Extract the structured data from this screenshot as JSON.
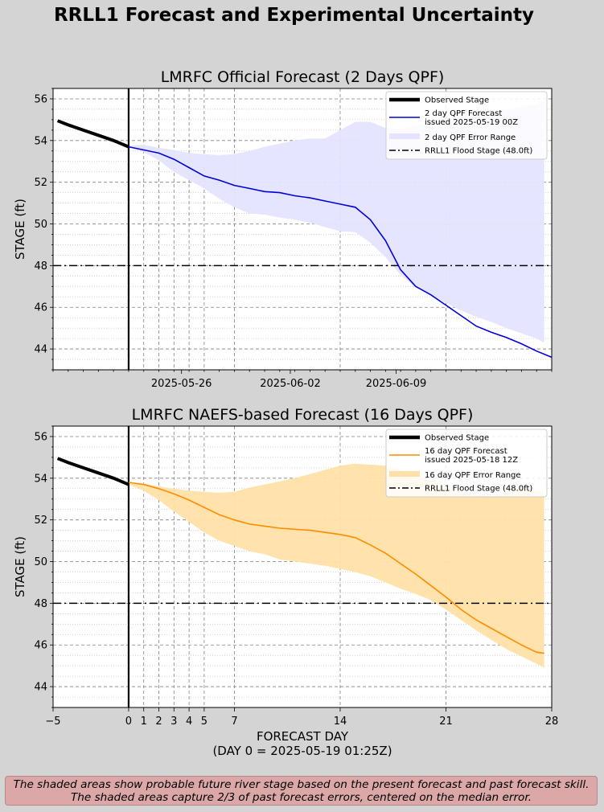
{
  "figure": {
    "title": "RRLL1 Forecast and Experimental Uncertainty",
    "footnote": [
      "The shaded areas show probable future river stage based on the present forecast and past forecast skill.",
      "The shaded areas capture 2/3 of past forecast errors, centered on the median error."
    ]
  },
  "colors": {
    "background": "#d4d4d4",
    "observed": "#000000",
    "forecast_2day": "#0000dd",
    "band_2day": "#e4e4ff",
    "forecast_16day": "#ff8c00",
    "band_16day": "#ffe0a8",
    "flood": "#000000",
    "footnote_bg": "#dca7a7"
  },
  "chart_data": [
    {
      "type": "line",
      "title": "LMRFC Official Forecast (2 Days QPF)",
      "ylabel": "STAGE (ft)",
      "xlim": [
        -5,
        28
      ],
      "ylim": [
        43,
        56.5
      ],
      "yticks": [
        44,
        46,
        48,
        50,
        52,
        54,
        56
      ],
      "date_ticks": [
        {
          "day": 3.5,
          "label": "2025-05-26"
        },
        {
          "day": 10.7,
          "label": "2025-06-02"
        },
        {
          "day": 17.7,
          "label": "2025-06-09"
        }
      ],
      "flood_stage": 48.0,
      "legend_position": "upper right",
      "legend": [
        "Observed Stage",
        "2 day QPF Forecast\nissued 2025-05-19 00Z",
        "2 day QPF Error Range",
        "RRLL1 Flood Stage (48.0ft)"
      ],
      "series": [
        {
          "name": "Observed Stage",
          "x": [
            -4.7,
            -4,
            -3,
            -2,
            -1,
            -0.5,
            0
          ],
          "y": [
            54.95,
            54.75,
            54.5,
            54.25,
            54.0,
            53.85,
            53.7
          ]
        },
        {
          "name": "2 day QPF Forecast\nissued 2025-05-19 00Z",
          "x": [
            0,
            1,
            2,
            3,
            4,
            5,
            6,
            7,
            8,
            9,
            10,
            11,
            12,
            13,
            14,
            15,
            16,
            17,
            18,
            19,
            20,
            21,
            22,
            23,
            24,
            25,
            26,
            27,
            28
          ],
          "y": [
            53.7,
            53.55,
            53.4,
            53.1,
            52.7,
            52.3,
            52.1,
            51.85,
            51.7,
            51.55,
            51.5,
            51.35,
            51.25,
            51.1,
            50.95,
            50.8,
            50.2,
            49.2,
            47.8,
            47.0,
            46.6,
            46.1,
            45.6,
            45.1,
            44.8,
            44.55,
            44.25,
            43.9,
            43.6
          ]
        },
        {
          "name": "2 day QPF Error Range",
          "x": [
            0,
            1,
            2,
            3,
            4,
            5,
            6,
            7,
            8,
            9,
            10,
            11,
            12,
            13,
            14,
            15,
            16,
            17,
            18,
            19,
            20,
            21,
            22,
            23,
            24,
            25,
            26,
            27,
            27.5
          ],
          "upper": [
            53.75,
            53.8,
            53.65,
            53.55,
            53.4,
            53.35,
            53.3,
            53.35,
            53.5,
            53.7,
            53.85,
            54.0,
            54.1,
            54.1,
            54.5,
            54.9,
            54.9,
            54.6,
            54.55,
            54.7,
            54.85,
            55.0,
            55.1,
            55.25,
            55.4,
            55.5,
            55.6,
            55.75,
            55.9
          ],
          "lower": [
            53.7,
            53.45,
            53.05,
            52.5,
            52.1,
            51.7,
            51.2,
            50.8,
            50.5,
            50.45,
            50.3,
            50.2,
            50.05,
            49.85,
            49.65,
            49.6,
            49.1,
            48.4,
            47.55,
            46.95,
            46.6,
            46.2,
            45.85,
            45.55,
            45.3,
            45.0,
            44.75,
            44.5,
            44.3
          ]
        }
      ]
    },
    {
      "type": "line",
      "title": "LMRFC NAEFS-based Forecast (16 Days QPF)",
      "ylabel": "STAGE (ft)",
      "xlabel": "FORECAST DAY",
      "xlabel2": "(DAY 0 = 2025-05-19 01:25Z)",
      "xlim": [
        -5,
        28
      ],
      "ylim": [
        43,
        56.5
      ],
      "yticks": [
        44,
        46,
        48,
        50,
        52,
        54,
        56
      ],
      "xticks": [
        -5,
        0,
        1,
        2,
        3,
        4,
        5,
        7,
        14,
        21,
        28
      ],
      "flood_stage": 48.0,
      "legend_position": "upper right",
      "legend": [
        "Observed Stage",
        "16 day QPF Forecast\nissued 2025-05-18 12Z",
        "16 day QPF Error Range",
        "RRLL1 Flood Stage (48.0ft)"
      ],
      "series": [
        {
          "name": "Observed Stage",
          "x": [
            -4.7,
            -4,
            -3,
            -2,
            -1,
            -0.5,
            0
          ],
          "y": [
            54.95,
            54.75,
            54.5,
            54.25,
            54.0,
            53.85,
            53.7
          ]
        },
        {
          "name": "16 day QPF Forecast\nissued 2025-05-18 12Z",
          "x": [
            0,
            1,
            2,
            3,
            4,
            5,
            6,
            7,
            8,
            9,
            10,
            11,
            12,
            13,
            14,
            15,
            16,
            17,
            18,
            19,
            20,
            21,
            22,
            23,
            24,
            25,
            26,
            27,
            27.5
          ],
          "y": [
            53.8,
            53.7,
            53.5,
            53.25,
            52.95,
            52.6,
            52.25,
            52.0,
            51.8,
            51.7,
            51.6,
            51.55,
            51.5,
            51.4,
            51.3,
            51.15,
            50.8,
            50.4,
            49.9,
            49.4,
            48.85,
            48.3,
            47.7,
            47.2,
            46.8,
            46.4,
            46.0,
            45.65,
            45.6
          ]
        },
        {
          "name": "16 day QPF Error Range",
          "x": [
            0,
            1,
            2,
            3,
            4,
            5,
            6,
            7,
            8,
            9,
            10,
            11,
            12,
            13,
            14,
            15,
            16,
            17,
            18,
            19,
            20,
            21,
            22,
            23,
            24,
            25,
            26,
            27,
            27.5
          ],
          "upper": [
            53.8,
            53.75,
            53.6,
            53.5,
            53.4,
            53.35,
            53.3,
            53.35,
            53.55,
            53.7,
            53.85,
            54.0,
            54.2,
            54.4,
            54.6,
            54.7,
            54.65,
            54.6,
            54.4,
            54.15,
            53.9,
            53.6,
            53.3,
            53.2,
            53.1,
            53.3,
            53.5,
            53.4,
            53.3
          ]
        },
        {
          "name": "16 day QPF Error Range",
          "x": [
            0,
            1,
            2,
            3,
            4,
            5,
            6,
            7,
            8,
            9,
            10,
            11,
            12,
            13,
            14,
            15,
            16,
            17,
            18,
            19,
            20,
            21,
            22,
            23,
            24,
            25,
            26,
            27,
            27.5
          ],
          "lower": [
            53.7,
            53.4,
            52.95,
            52.4,
            51.9,
            51.4,
            51.0,
            50.75,
            50.5,
            50.35,
            50.1,
            50.0,
            49.9,
            49.8,
            49.65,
            49.5,
            49.3,
            49.0,
            48.7,
            48.45,
            48.15,
            47.7,
            47.2,
            46.7,
            46.25,
            45.8,
            45.45,
            45.1,
            44.9
          ]
        }
      ]
    }
  ]
}
